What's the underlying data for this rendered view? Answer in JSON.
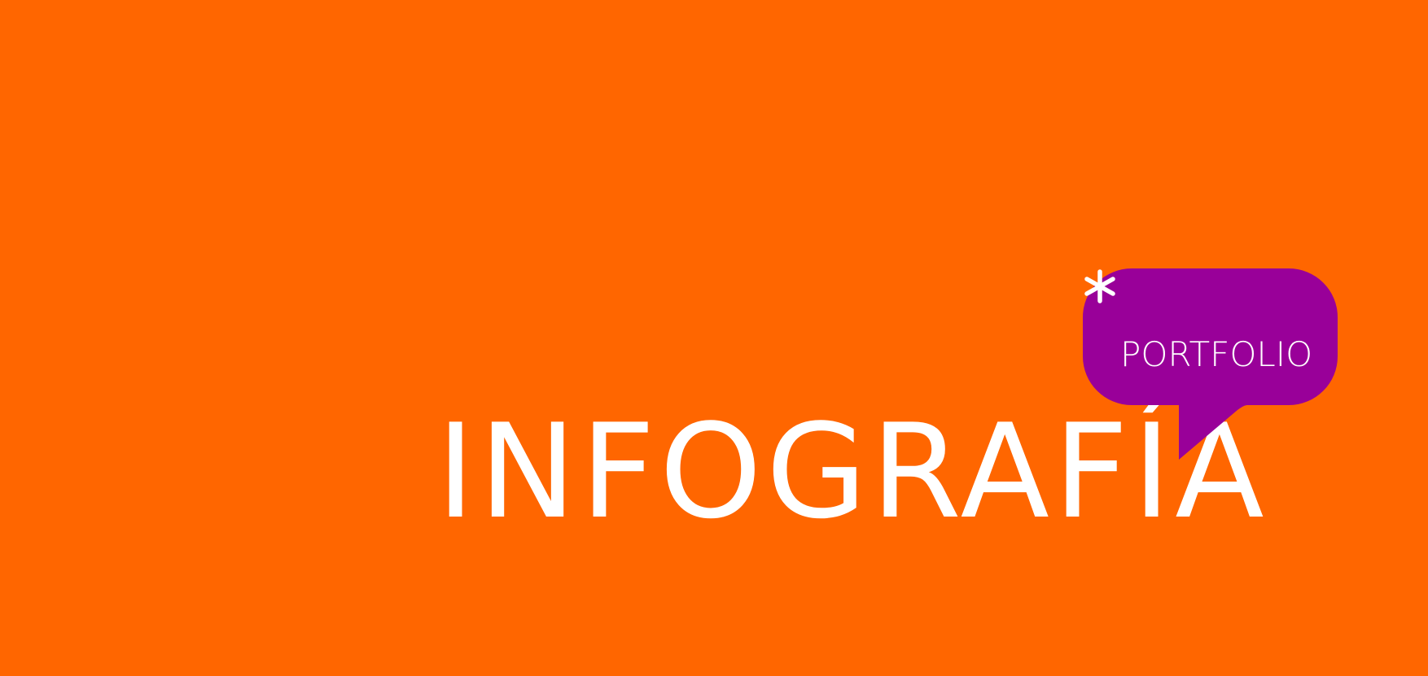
{
  "background_color": "#ff6600",
  "accent_color": "#990099",
  "text_color": "#ffffff",
  "title": "INFOGRAFÍA",
  "badge": {
    "icon": "asterisk-icon",
    "label": "PORTFOLIO"
  }
}
